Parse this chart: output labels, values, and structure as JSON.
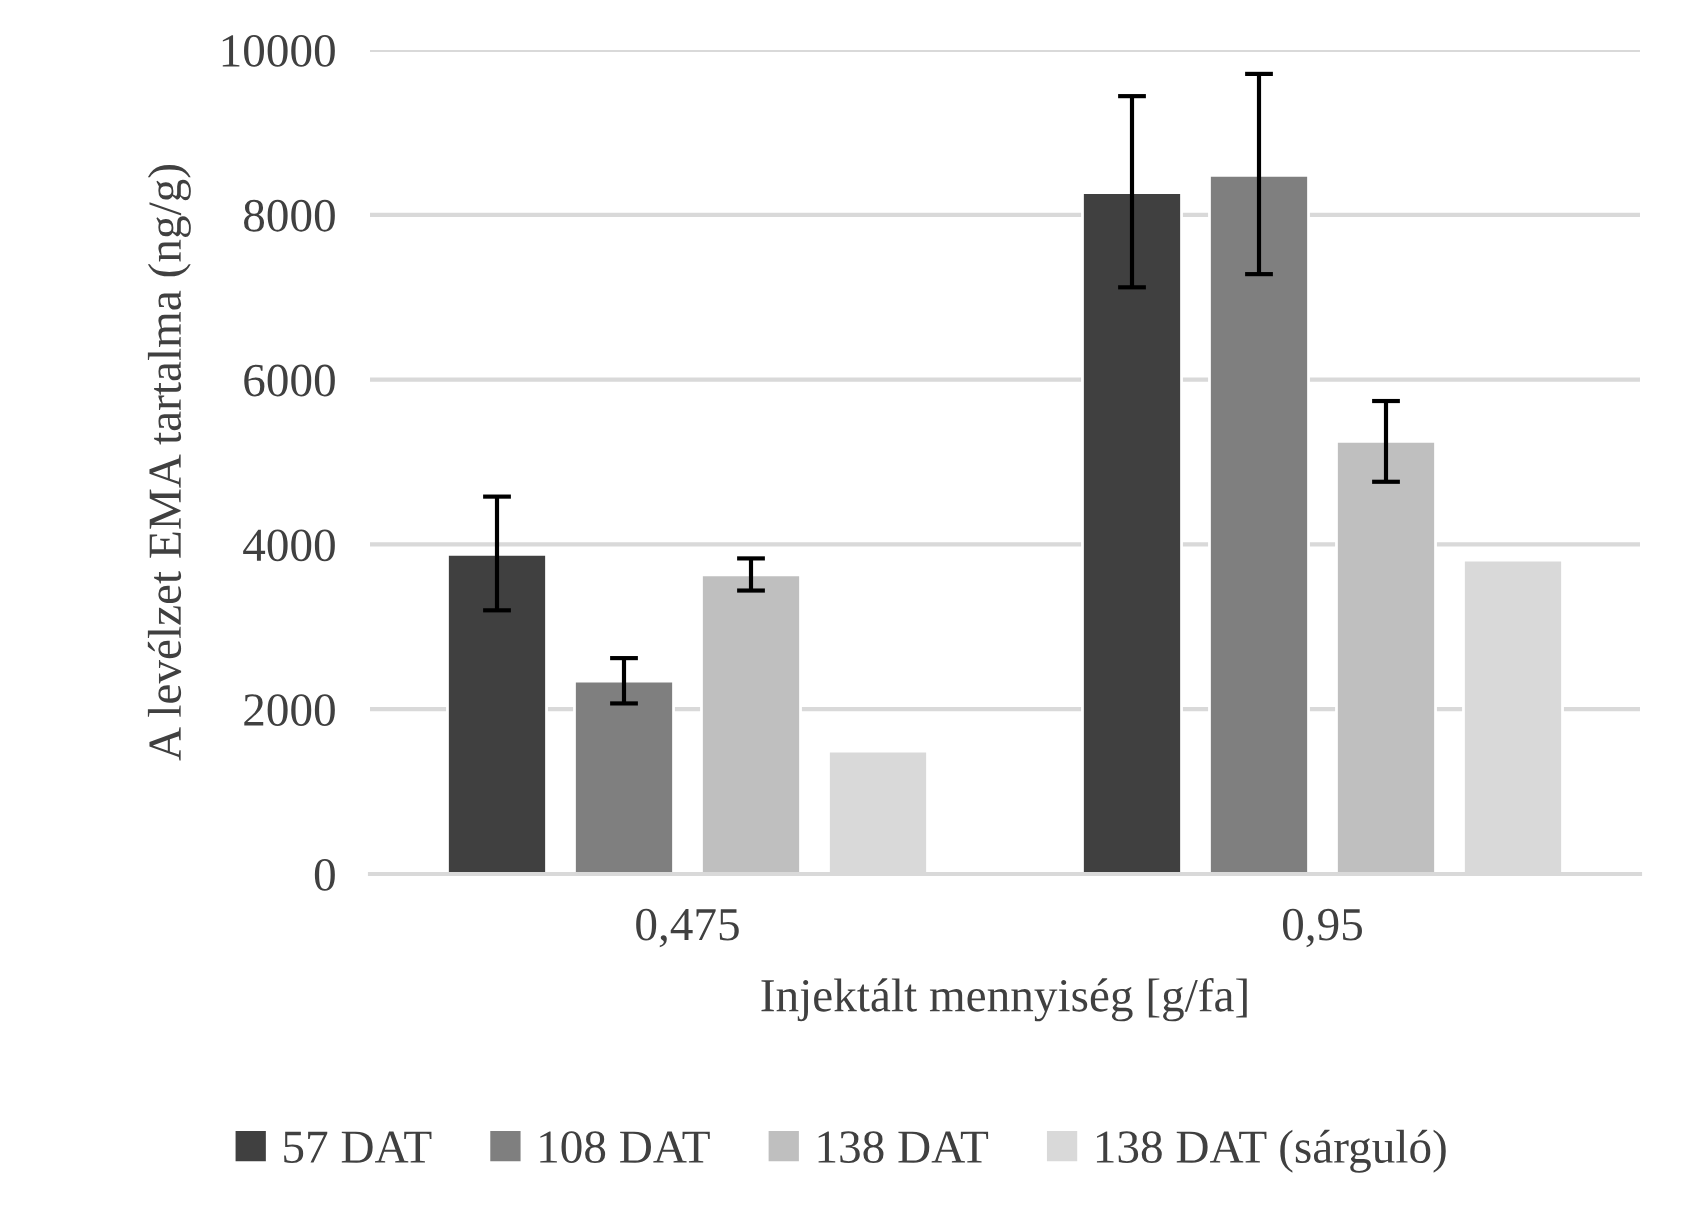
{
  "chart_data": {
    "type": "bar",
    "xlabel": "Injektált mennyiség [g/fa]",
    "ylabel": "A levélzet EMA tartalma (ng/g)",
    "categories": [
      "0,475",
      "0,95"
    ],
    "series": [
      {
        "name": "57 DAT",
        "color": "#404040",
        "values": [
          3880,
          8270
        ],
        "errors": [
          [
            3200,
            4580
          ],
          [
            7120,
            9440
          ]
        ]
      },
      {
        "name": "108 DAT",
        "color": "#7f7f7f",
        "values": [
          2340,
          8480
        ],
        "errors": [
          [
            2070,
            2620
          ],
          [
            7280,
            9710
          ]
        ]
      },
      {
        "name": "138 DAT",
        "color": "#bfbfbf",
        "values": [
          3630,
          5250
        ],
        "errors": [
          [
            3440,
            3830
          ],
          [
            4760,
            5740
          ]
        ]
      },
      {
        "name": "138 DAT (sárguló)",
        "color": "#d9d9d9",
        "values": [
          1490,
          3810
        ]
      }
    ],
    "ylim": [
      0,
      10000
    ],
    "yticks": [
      0,
      2000,
      4000,
      6000,
      8000,
      10000
    ],
    "grid": "y",
    "legend": "bottom"
  }
}
